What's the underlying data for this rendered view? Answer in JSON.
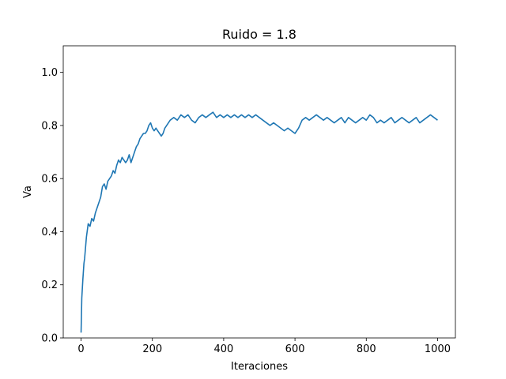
{
  "chart_data": {
    "type": "line",
    "title": "Ruido = 1.8",
    "xlabel": "Iteraciones",
    "ylabel": "Va",
    "xlim": [
      -50,
      1050
    ],
    "ylim": [
      0.0,
      1.1
    ],
    "xticks": [
      0,
      200,
      400,
      600,
      800,
      1000
    ],
    "yticks": [
      0.0,
      0.2,
      0.4,
      0.6,
      0.8,
      1.0
    ],
    "xtick_labels": [
      "0",
      "200",
      "400",
      "600",
      "800",
      "1000"
    ],
    "ytick_labels": [
      "0.0",
      "0.2",
      "0.4",
      "0.6",
      "0.8",
      "1.0"
    ],
    "grid": false,
    "series": [
      {
        "color": "#1f77b4",
        "x": [
          0,
          2,
          5,
          8,
          10,
          15,
          20,
          25,
          30,
          35,
          40,
          45,
          50,
          55,
          60,
          65,
          70,
          75,
          80,
          85,
          90,
          95,
          100,
          105,
          110,
          115,
          120,
          125,
          130,
          135,
          140,
          145,
          150,
          155,
          160,
          165,
          170,
          175,
          180,
          185,
          190,
          195,
          200,
          205,
          210,
          215,
          220,
          225,
          230,
          235,
          240,
          245,
          250,
          260,
          270,
          280,
          290,
          300,
          310,
          320,
          330,
          340,
          350,
          360,
          370,
          380,
          390,
          400,
          410,
          420,
          430,
          440,
          450,
          460,
          470,
          480,
          490,
          500,
          510,
          520,
          530,
          540,
          550,
          560,
          570,
          580,
          590,
          600,
          610,
          620,
          630,
          640,
          650,
          660,
          670,
          680,
          690,
          700,
          710,
          720,
          730,
          740,
          750,
          760,
          770,
          780,
          790,
          800,
          810,
          820,
          830,
          840,
          850,
          860,
          870,
          880,
          890,
          900,
          910,
          920,
          930,
          940,
          950,
          960,
          970,
          980,
          990,
          1000
        ],
        "y": [
          0.02,
          0.15,
          0.22,
          0.28,
          0.3,
          0.38,
          0.43,
          0.42,
          0.45,
          0.44,
          0.47,
          0.49,
          0.51,
          0.53,
          0.57,
          0.58,
          0.56,
          0.59,
          0.6,
          0.61,
          0.63,
          0.62,
          0.65,
          0.67,
          0.66,
          0.68,
          0.67,
          0.66,
          0.67,
          0.69,
          0.66,
          0.68,
          0.7,
          0.72,
          0.73,
          0.75,
          0.76,
          0.77,
          0.77,
          0.78,
          0.8,
          0.81,
          0.79,
          0.78,
          0.79,
          0.78,
          0.77,
          0.76,
          0.77,
          0.79,
          0.8,
          0.81,
          0.82,
          0.83,
          0.82,
          0.84,
          0.83,
          0.84,
          0.82,
          0.81,
          0.83,
          0.84,
          0.83,
          0.84,
          0.85,
          0.83,
          0.84,
          0.83,
          0.84,
          0.83,
          0.84,
          0.83,
          0.84,
          0.83,
          0.84,
          0.83,
          0.84,
          0.83,
          0.82,
          0.81,
          0.8,
          0.81,
          0.8,
          0.79,
          0.78,
          0.79,
          0.78,
          0.77,
          0.79,
          0.82,
          0.83,
          0.82,
          0.83,
          0.84,
          0.83,
          0.82,
          0.83,
          0.82,
          0.81,
          0.82,
          0.83,
          0.81,
          0.83,
          0.82,
          0.81,
          0.82,
          0.83,
          0.82,
          0.84,
          0.83,
          0.81,
          0.82,
          0.81,
          0.82,
          0.83,
          0.81,
          0.82,
          0.83,
          0.82,
          0.81,
          0.82,
          0.83,
          0.81,
          0.82,
          0.83,
          0.84,
          0.83,
          0.82
        ]
      }
    ]
  }
}
